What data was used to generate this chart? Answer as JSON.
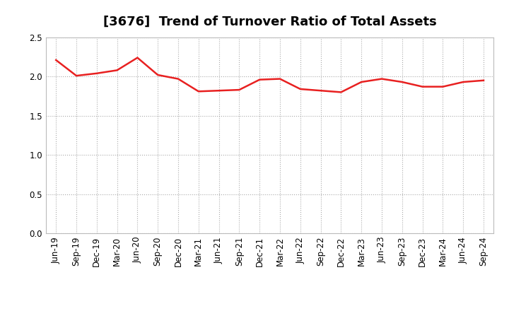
{
  "title": "[3676]  Trend of Turnover Ratio of Total Assets",
  "x_labels": [
    "Jun-19",
    "Sep-19",
    "Dec-19",
    "Mar-20",
    "Jun-20",
    "Sep-20",
    "Dec-20",
    "Mar-21",
    "Jun-21",
    "Sep-21",
    "Dec-21",
    "Mar-22",
    "Jun-22",
    "Sep-22",
    "Dec-22",
    "Mar-23",
    "Jun-23",
    "Sep-23",
    "Dec-23",
    "Mar-24",
    "Jun-24",
    "Sep-24"
  ],
  "y_values": [
    2.21,
    2.01,
    2.04,
    2.08,
    2.24,
    2.02,
    1.97,
    1.81,
    1.82,
    1.83,
    1.96,
    1.97,
    1.84,
    1.82,
    1.8,
    1.93,
    1.97,
    1.93,
    1.87,
    1.87,
    1.93,
    1.95
  ],
  "line_color": "#e82020",
  "background_color": "#ffffff",
  "plot_bg_color": "#ffffff",
  "ylim": [
    0.0,
    2.5
  ],
  "yticks": [
    0.0,
    0.5,
    1.0,
    1.5,
    2.0,
    2.5
  ],
  "grid_color": "#aaaaaa",
  "title_fontsize": 13,
  "tick_fontsize": 8.5,
  "line_width": 1.8
}
